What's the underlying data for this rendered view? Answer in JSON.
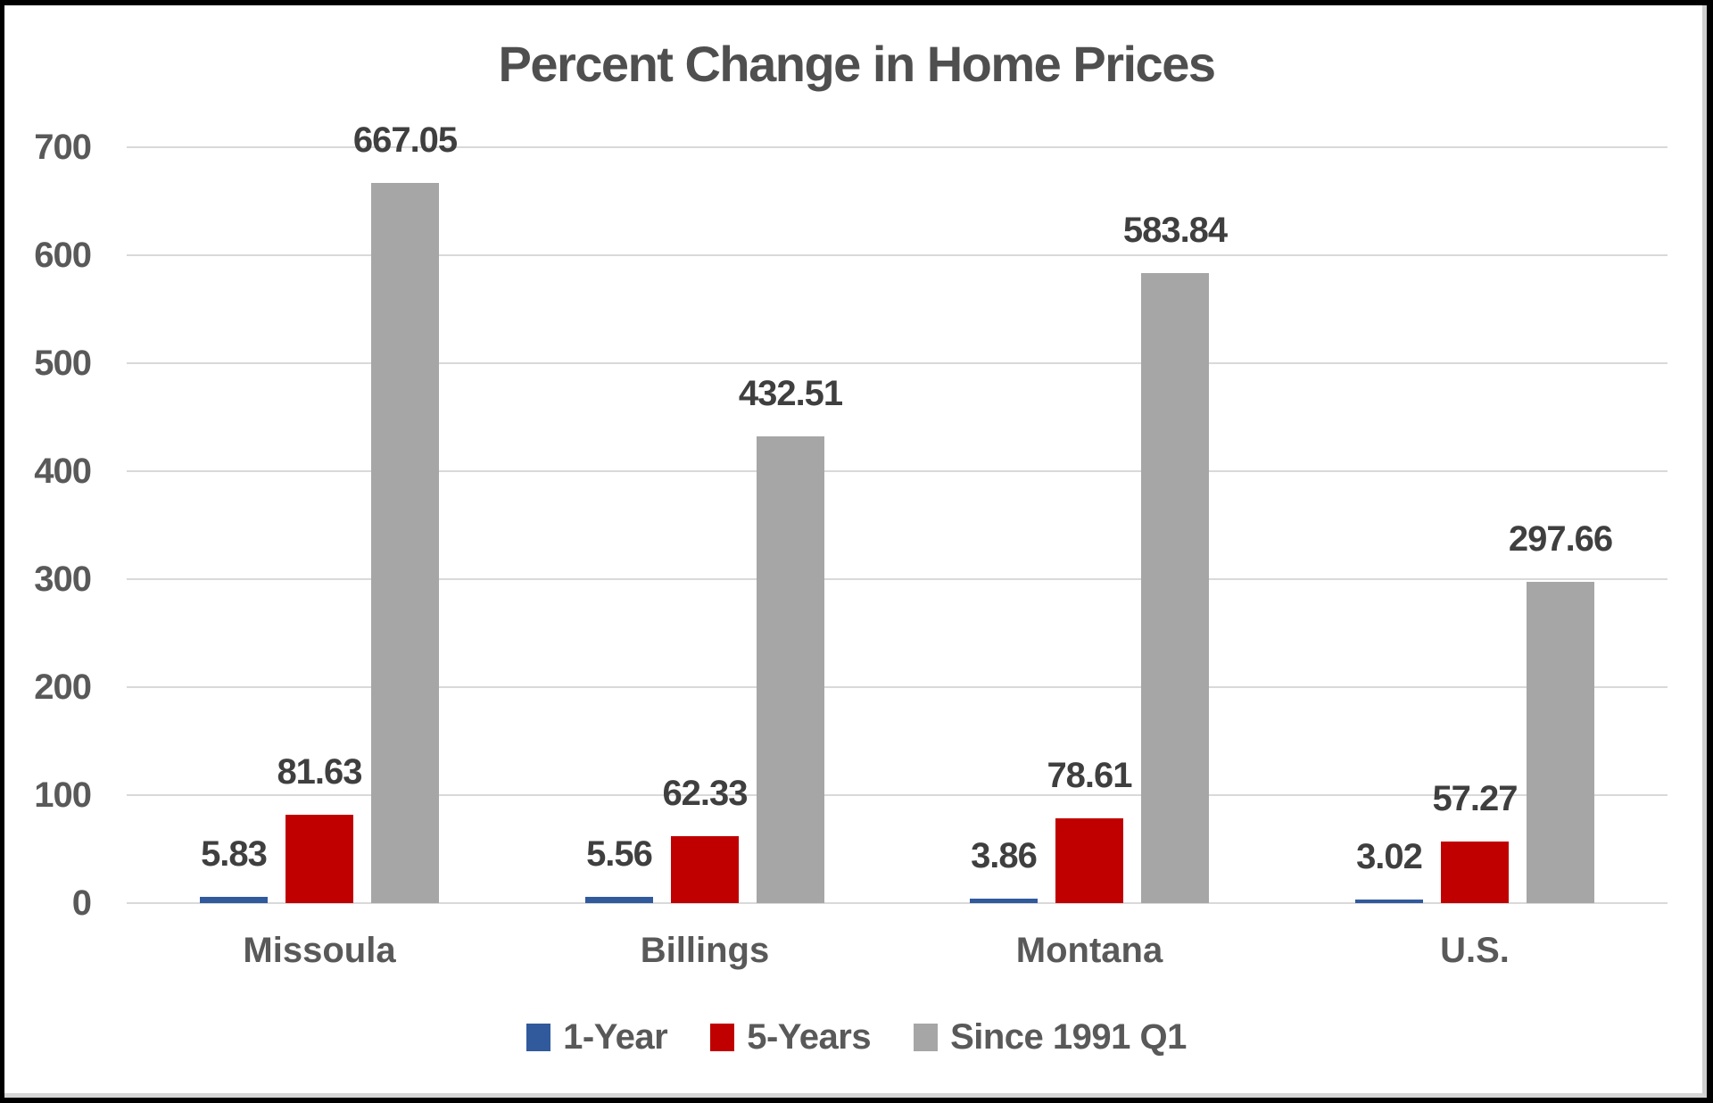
{
  "chart_data": {
    "type": "bar",
    "title": "Percent Change in Home Prices",
    "categories": [
      "Missoula",
      "Billings",
      "Montana",
      "U.S."
    ],
    "series": [
      {
        "name": "1-Year",
        "color": "#315a9c",
        "values": [
          5.83,
          5.56,
          3.86,
          3.02
        ],
        "labels": [
          "5.83",
          "5.56",
          "3.86",
          "3.02"
        ]
      },
      {
        "name": "5-Years",
        "color": "#c00000",
        "values": [
          81.63,
          62.33,
          78.61,
          57.27
        ],
        "labels": [
          "81.63",
          "62.33",
          "78.61",
          "57.27"
        ]
      },
      {
        "name": "Since 1991 Q1",
        "color": "#a6a6a6",
        "values": [
          667.05,
          432.51,
          583.84,
          297.66
        ],
        "labels": [
          "667.05",
          "432.51",
          "583.84",
          "297.66"
        ]
      }
    ],
    "y_axis": {
      "min": 0,
      "max": 700,
      "step": 100,
      "tick_labels": [
        "0",
        "100",
        "200",
        "300",
        "400",
        "500",
        "600",
        "700"
      ]
    },
    "grid": true,
    "legend_position": "bottom",
    "colors": {
      "title_text": "#4f4f4f",
      "axis_text": "#595959",
      "value_label_text": "#3f3f3f",
      "gridline": "#d9d9d9",
      "background": "#ffffff",
      "frame_border": "#000000"
    }
  }
}
